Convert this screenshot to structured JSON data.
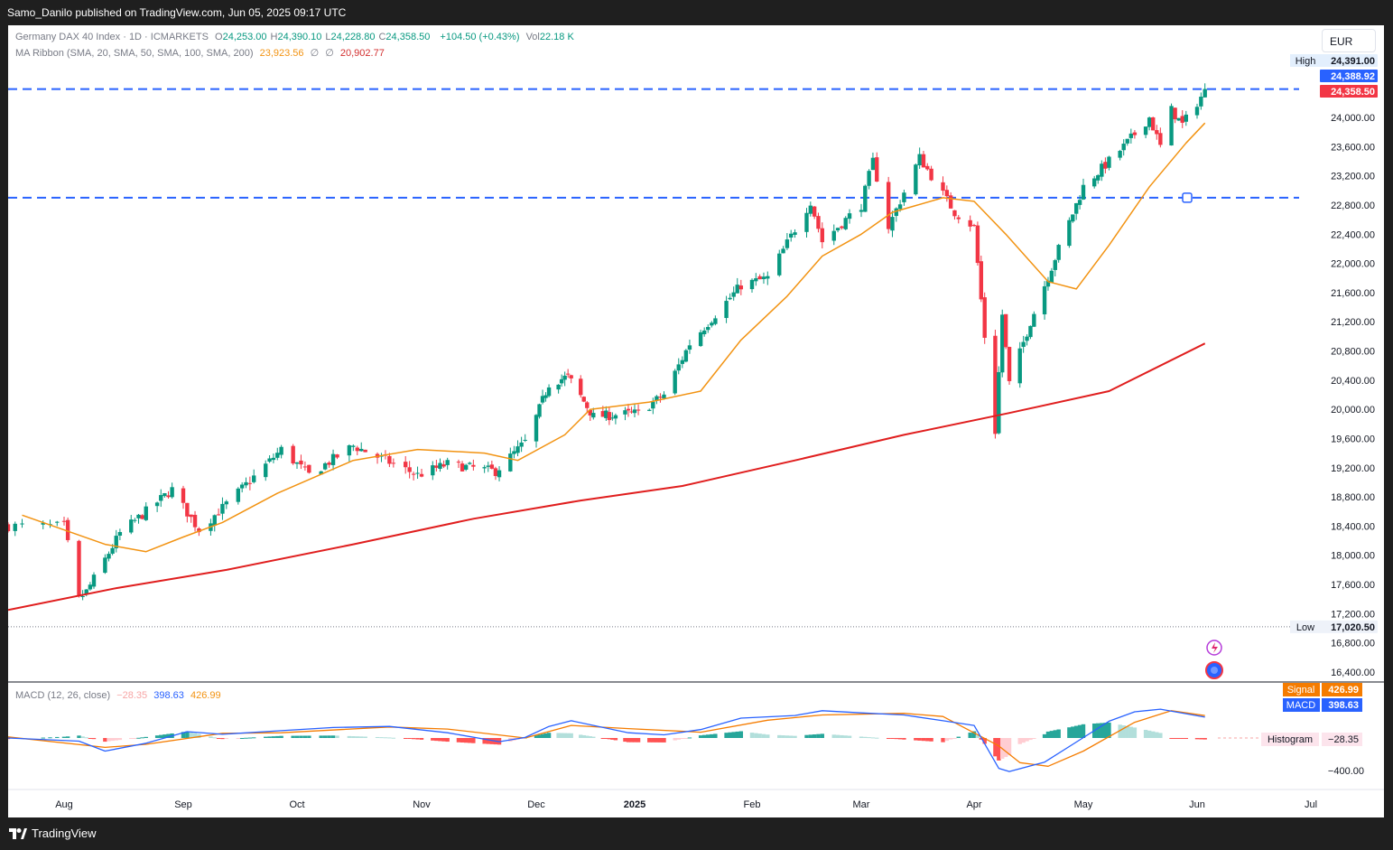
{
  "header": {
    "publisher_text": "Samo_Danilo published on TradingView.com, Jun 05, 2025 09:17 UTC"
  },
  "legend": {
    "symbol": "Germany DAX 40 Index · 1D · ICMARKETS",
    "ohlc": [
      {
        "k": "O",
        "v": "24,253.00"
      },
      {
        "k": "H",
        "v": "24,390.10"
      },
      {
        "k": "L",
        "v": "24,228.80"
      },
      {
        "k": "C",
        "v": "24,358.50"
      }
    ],
    "change": "+104.50 (+0.43%)",
    "vol_label": "Vol",
    "vol": "22.18 K",
    "ma_label": "MA Ribbon (SMA, 20, SMA, 50, SMA, 100, SMA, 200)",
    "ma_v1": "23,923.56",
    "ma_sym1": "∅",
    "ma_sym2": "∅",
    "ma_v2": "20,902.77"
  },
  "currency": "EUR",
  "price_axis": {
    "ticks": [
      "24,000.00",
      "23,600.00",
      "23,200.00",
      "22,800.00",
      "22,400.00",
      "22,000.00",
      "21,600.00",
      "21,200.00",
      "20,800.00",
      "20,400.00",
      "20,000.00",
      "19,600.00",
      "19,200.00",
      "18,800.00",
      "18,400.00",
      "18,000.00",
      "17,600.00",
      "17,200.00",
      "16,800.00",
      "16,400.00"
    ],
    "high_label": "High",
    "high_value": "24,391.00",
    "line_value": "24,388.92",
    "last_value": "24,358.50",
    "low_label": "Low",
    "low_value": "17,020.50"
  },
  "macd_panel": {
    "legend_name": "MACD (12, 26, close)",
    "legend_hist": "−28.35",
    "legend_macd": "398.63",
    "legend_signal": "426.99",
    "signal_label": "Signal",
    "signal_value": "426.99",
    "macd_label": "MACD",
    "macd_value": "398.63",
    "hist_label": "Histogram",
    "hist_value": "−28.35",
    "tick": "−400.00"
  },
  "time_axis": [
    "Aug",
    "Sep",
    "Oct",
    "Nov",
    "Dec",
    "2025",
    "Feb",
    "Mar",
    "Apr",
    "May",
    "Jun",
    "Jul"
  ],
  "footer": {
    "brand": "TradingView"
  },
  "colors": {
    "up": "#089981",
    "down": "#f23645",
    "sma20": "#f29312",
    "sma200": "#e01e1e",
    "hline": "#2962ff",
    "macd": "#2962ff",
    "signal": "#f57c00"
  },
  "chart_data": {
    "type": "candlestick",
    "symbol": "Germany DAX 40 Index",
    "timeframe": "1D",
    "x_range": [
      "Jul 2024",
      "Jul 2025"
    ],
    "ylim": [
      16300,
      24700
    ],
    "horizontal_lines": [
      24388.92,
      22900
    ],
    "price_path_close": [
      [
        "Jul 24",
        18400
      ],
      [
        "Aug 1",
        18400
      ],
      [
        "Aug 5",
        17400
      ],
      [
        "Aug 7",
        17500
      ],
      [
        "Aug 16",
        18300
      ],
      [
        "Aug 30",
        18900
      ],
      [
        "Sep 6",
        18350
      ],
      [
        "Sep 13",
        18700
      ],
      [
        "Sep 27",
        19450
      ],
      [
        "Oct 4",
        19100
      ],
      [
        "Oct 15",
        19500
      ],
      [
        "Oct 31",
        19100
      ],
      [
        "Nov 8",
        19250
      ],
      [
        "Nov 21",
        19150
      ],
      [
        "Nov 29",
        19550
      ],
      [
        "Dec 6",
        20350
      ],
      [
        "Dec 12",
        20450
      ],
      [
        "Dec 20",
        19900
      ],
      [
        "Jan 3",
        19950
      ],
      [
        "Jan 10",
        20200
      ],
      [
        "Jan 17",
        20900
      ],
      [
        "Jan 31",
        21700
      ],
      [
        "Feb 7",
        21800
      ],
      [
        "Feb 18",
        22850
      ],
      [
        "Feb 21",
        22300
      ],
      [
        "Mar 3",
        22800
      ],
      [
        "Mar 6",
        23400
      ],
      [
        "Mar 10",
        22500
      ],
      [
        "Mar 18",
        23450
      ],
      [
        "Mar 27",
        22700
      ],
      [
        "Apr 1",
        22500
      ],
      [
        "Apr 4",
        21000
      ],
      [
        "Apr 7",
        19700
      ],
      [
        "Apr 9",
        21300
      ],
      [
        "Apr 11",
        20350
      ],
      [
        "Apr 17",
        21200
      ],
      [
        "Apr 25",
        22200
      ],
      [
        "May 2",
        23050
      ],
      [
        "May 13",
        23600
      ],
      [
        "May 20",
        24000
      ],
      [
        "May 23",
        23600
      ],
      [
        "May 26",
        24100
      ],
      [
        "May 29",
        23900
      ],
      [
        "Jun 4",
        24358.5
      ]
    ],
    "sma20_path": [
      [
        "Jul 26",
        18550
      ],
      [
        "Aug 12",
        18150
      ],
      [
        "Aug 23",
        18050
      ],
      [
        "Sep 2",
        18250
      ],
      [
        "Sep 12",
        18450
      ],
      [
        "Sep 26",
        18850
      ],
      [
        "Oct 15",
        19300
      ],
      [
        "Oct 31",
        19450
      ],
      [
        "Nov 18",
        19400
      ],
      [
        "Nov 27",
        19300
      ],
      [
        "Dec 11",
        19650
      ],
      [
        "Dec 19",
        20000
      ],
      [
        "Jan 6",
        20100
      ],
      [
        "Jan 20",
        20250
      ],
      [
        "Jan 31",
        20950
      ],
      [
        "Feb 12",
        21550
      ],
      [
        "Feb 21",
        22100
      ],
      [
        "Mar 3",
        22400
      ],
      [
        "Mar 11",
        22700
      ],
      [
        "Mar 24",
        22900
      ],
      [
        "Apr 1",
        22850
      ],
      [
        "Apr 10",
        22400
      ],
      [
        "Apr 22",
        21750
      ],
      [
        "Apr 30",
        21650
      ],
      [
        "May 9",
        22250
      ],
      [
        "May 20",
        23050
      ],
      [
        "May 30",
        23650
      ],
      [
        "Jun 4",
        23923.56
      ]
    ],
    "sma200_path": [
      [
        "Jul 24",
        17250
      ],
      [
        "Aug 15",
        17550
      ],
      [
        "Sep 13",
        17800
      ],
      [
        "Oct 15",
        18150
      ],
      [
        "Nov 15",
        18500
      ],
      [
        "Dec 16",
        18750
      ],
      [
        "Jan 15",
        18950
      ],
      [
        "Feb 14",
        19300
      ],
      [
        "Mar 14",
        19650
      ],
      [
        "Apr 11",
        19950
      ],
      [
        "May 9",
        20250
      ],
      [
        "Jun 4",
        20902.77
      ]
    ],
    "macd": {
      "hist_last": -28.35,
      "macd_last": 398.63,
      "signal_last": 426.99,
      "macd_path": [
        [
          "Jul 24",
          0
        ],
        [
          "Aug 5",
          -60
        ],
        [
          "Aug 12",
          -250
        ],
        [
          "Aug 23",
          -100
        ],
        [
          "Sep 3",
          120
        ],
        [
          "Sep 12",
          70
        ],
        [
          "Sep 27",
          140
        ],
        [
          "Oct 10",
          200
        ],
        [
          "Oct 24",
          220
        ],
        [
          "Nov 8",
          100
        ],
        [
          "Nov 22",
          -70
        ],
        [
          "Nov 29",
          10
        ],
        [
          "Dec 6",
          220
        ],
        [
          "Dec 13",
          330
        ],
        [
          "Dec 31",
          100
        ],
        [
          "Jan 10",
          60
        ],
        [
          "Jan 20",
          160
        ],
        [
          "Jan 31",
          380
        ],
        [
          "Feb 14",
          430
        ],
        [
          "Feb 21",
          520
        ],
        [
          "Mar 3",
          480
        ],
        [
          "Mar 14",
          440
        ],
        [
          "Mar 24",
          330
        ],
        [
          "Apr 1",
          240
        ],
        [
          "Apr 8",
          -580
        ],
        [
          "Apr 11",
          -640
        ],
        [
          "Apr 21",
          -460
        ],
        [
          "Apr 29",
          -120
        ],
        [
          "May 9",
          320
        ],
        [
          "May 16",
          500
        ],
        [
          "May 23",
          550
        ],
        [
          "Jun 4",
          398.63
        ]
      ],
      "signal_path": [
        [
          "Jul 24",
          20
        ],
        [
          "Aug 12",
          -180
        ],
        [
          "Aug 23",
          -120
        ],
        [
          "Sep 12",
          90
        ],
        [
          "Sep 27",
          100
        ],
        [
          "Oct 24",
          210
        ],
        [
          "Nov 8",
          170
        ],
        [
          "Nov 29",
          0
        ],
        [
          "Dec 13",
          240
        ],
        [
          "Dec 31",
          180
        ],
        [
          "Jan 20",
          110
        ],
        [
          "Feb 7",
          340
        ],
        [
          "Feb 21",
          440
        ],
        [
          "Mar 14",
          470
        ],
        [
          "Mar 24",
          410
        ],
        [
          "Apr 8",
          -150
        ],
        [
          "Apr 14",
          -470
        ],
        [
          "Apr 22",
          -540
        ],
        [
          "May 2",
          -250
        ],
        [
          "May 16",
          300
        ],
        [
          "May 26",
          520
        ],
        [
          "Jun 4",
          426.99
        ]
      ]
    }
  }
}
